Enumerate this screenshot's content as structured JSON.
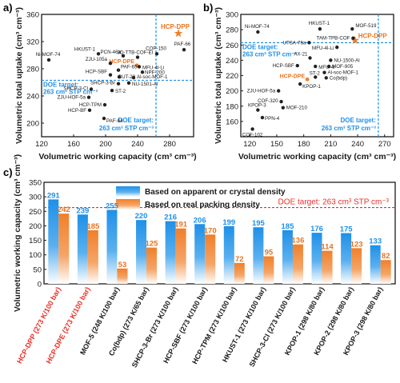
{
  "colors": {
    "orange": "#f07f2a",
    "orange_text": "#e8731f",
    "blue": "#1e90e8",
    "blue_light": "#8cc8f5",
    "dark": "#1a1a1a",
    "red_dash": "#e8312a",
    "label_red": "#e8312a"
  },
  "chart_data": [
    {
      "panel": "a)",
      "type": "scatter",
      "xlabel": "Volumetric working capacity (cm³ cm⁻³)",
      "ylabel": "Volumetric total uptake (cm³ cm⁻³)",
      "xlim": [
        120,
        310
      ],
      "ylim": [
        180,
        360
      ],
      "xticks": [
        120,
        160,
        200,
        240,
        280
      ],
      "yticks": [
        200,
        240,
        280,
        320,
        360
      ],
      "doe": {
        "x": 263,
        "y": 263
      },
      "doe_label": "DOE target:",
      "doe_unit": "263 cm³ STP cm⁻³",
      "doe_label2": "DOE target:",
      "doe_unit2": "263 cm³ STP cm⁻³",
      "points": [
        {
          "name": "HCP-DPP",
          "x": 291,
          "y": 332,
          "kind": "star"
        },
        {
          "name": "HCP-DPE",
          "x": 239,
          "y": 285,
          "kind": "highlight"
        },
        {
          "name": "PAF-66",
          "x": 298,
          "y": 308,
          "kind": "normal"
        },
        {
          "name": "COP-150",
          "x": 264,
          "y": 302,
          "kind": "normal"
        },
        {
          "name": "Ni-MOF-74",
          "x": 129,
          "y": 293,
          "kind": "normal"
        },
        {
          "name": "HKUST-1",
          "x": 191,
          "y": 302,
          "kind": "normal"
        },
        {
          "name": "PCN-46a",
          "x": 222,
          "y": 299,
          "kind": "normal"
        },
        {
          "name": "3D-TTB-COF-EI",
          "x": 240,
          "y": 297,
          "kind": "normal"
        },
        {
          "name": "ZJU-105a",
          "x": 206,
          "y": 288,
          "kind": "normal"
        },
        {
          "name": "MFU-4l-Li",
          "x": 242,
          "y": 283,
          "kind": "normal"
        },
        {
          "name": "PAF-65",
          "x": 216,
          "y": 278,
          "kind": "normal"
        },
        {
          "name": "NPF-200",
          "x": 246,
          "y": 275,
          "kind": "normal"
        },
        {
          "name": "HCP-SBF",
          "x": 206,
          "y": 271,
          "kind": "normal"
        },
        {
          "name": "BUT-22",
          "x": 217,
          "y": 268,
          "kind": "normal"
        },
        {
          "name": "Al-soc-MOF-1",
          "x": 235,
          "y": 267,
          "kind": "normal"
        },
        {
          "name": "SHCP-3-Br",
          "x": 216,
          "y": 258,
          "kind": "normal"
        },
        {
          "name": "NU-1501-Al",
          "x": 229,
          "y": 259,
          "kind": "normal"
        },
        {
          "name": "SHCP-3-Cl",
          "x": 182,
          "y": 250,
          "kind": "normal"
        },
        {
          "name": "ST-2",
          "x": 208,
          "y": 248,
          "kind": "normal"
        },
        {
          "name": "ZJU-HOF-5a",
          "x": 179,
          "y": 238,
          "kind": "normal"
        },
        {
          "name": "HCP-TPM",
          "x": 199,
          "y": 227,
          "kind": "normal"
        },
        {
          "name": "HCP-BF",
          "x": 180,
          "y": 219,
          "kind": "normal"
        },
        {
          "name": "PAF-64",
          "x": 198,
          "y": 207,
          "kind": "normal"
        }
      ]
    },
    {
      "panel": "b)",
      "type": "scatter",
      "xlabel": "Volumetric working capacity (cm³ cm⁻³)",
      "ylabel": "Volumetric total uptake (cm³ cm⁻³)",
      "xlim": [
        110,
        280
      ],
      "ylim": [
        140,
        300
      ],
      "xticks": [
        120,
        150,
        180,
        210,
        240,
        270
      ],
      "yticks": [
        160,
        180,
        200,
        220,
        240,
        260,
        280,
        300
      ],
      "doe": {
        "x": 263,
        "y": 263
      },
      "doe_label": "DOE target:",
      "doe_unit": "263 cm³ STP cm⁻³",
      "doe_label2": "DOE target:",
      "doe_unit2": "263 cm³ STP cm⁻³",
      "points": [
        {
          "name": "HCP-DPP",
          "x": 237,
          "y": 266,
          "kind": "star"
        },
        {
          "name": "HCP-DPE",
          "x": 184,
          "y": 215,
          "kind": "highlight"
        },
        {
          "name": "Ni-MOF-74",
          "x": 129,
          "y": 277,
          "kind": "normal"
        },
        {
          "name": "HKUST-1",
          "x": 198,
          "y": 281,
          "kind": "normal"
        },
        {
          "name": "MOF-519",
          "x": 234,
          "y": 281,
          "kind": "normal"
        },
        {
          "name": "UTSA-76a",
          "x": 186,
          "y": 263,
          "kind": "normal"
        },
        {
          "name": "TAM-TPB-COF",
          "x": 235,
          "y": 269,
          "kind": "normal"
        },
        {
          "name": "MFU-4l-Li",
          "x": 217,
          "y": 257,
          "kind": "normal"
        },
        {
          "name": "AX-21",
          "x": 187,
          "y": 243,
          "kind": "normal"
        },
        {
          "name": "NU-1500-Al",
          "x": 210,
          "y": 240,
          "kind": "normal"
        },
        {
          "name": "HCP-SBF",
          "x": 173,
          "y": 233,
          "kind": "normal"
        },
        {
          "name": "MFU-4l",
          "x": 193,
          "y": 232,
          "kind": "normal"
        },
        {
          "name": "MOF-905",
          "x": 208,
          "y": 232,
          "kind": "normal"
        },
        {
          "name": "Al-soc-MOF-1",
          "x": 203,
          "y": 224,
          "kind": "normal"
        },
        {
          "name": "ST-2",
          "x": 193,
          "y": 218,
          "kind": "normal"
        },
        {
          "name": "Co(bdp)",
          "x": 205,
          "y": 217,
          "kind": "normal"
        },
        {
          "name": "KPOP-1",
          "x": 176,
          "y": 209,
          "kind": "normal"
        },
        {
          "name": "ZJU-HOF-5a",
          "x": 152,
          "y": 200,
          "kind": "normal"
        },
        {
          "name": "COF-320",
          "x": 155,
          "y": 186,
          "kind": "normal"
        },
        {
          "name": "MOF-210",
          "x": 157,
          "y": 178,
          "kind": "normal"
        },
        {
          "name": "KPOP-3",
          "x": 129,
          "y": 175,
          "kind": "normal"
        },
        {
          "name": "PPN-4",
          "x": 134,
          "y": 165,
          "kind": "normal"
        },
        {
          "name": "COF-102",
          "x": 123,
          "y": 150,
          "kind": "normal"
        }
      ]
    },
    {
      "panel": "c)",
      "type": "bar",
      "ylabel": "Volumetric working capacity (cm³ cm⁻³)",
      "ylim": [
        0,
        350
      ],
      "yticks": [
        0,
        50,
        100,
        150,
        200,
        250,
        300,
        350
      ],
      "doe_line": 263,
      "doe_text": "DOE target: 263 cm³ STP cm⁻³",
      "categories": [
        "HCP-DPP (273 K/100 bar)",
        "HCP-DPE (273 K/100 bar)",
        "MOF-5 (248 K/100 bar)",
        "Co(bdp) (273 K/65 bar)",
        "SHCP-3-Br (273 K/100 bar)",
        "HCP-SBF (273 K/100 bar)",
        "HCP-TPM (273 K/100 bar)",
        "HKUST-1 (273 K/100 bar)",
        "SHCP-3-Cl (273 K/100 bar)",
        "KPOP-1 (298 K/80 bar)",
        "KPOP-2 (298 K/80 bar)",
        "KPOP-3 (298 K/80 bar)"
      ],
      "highlight_categories": [
        0,
        1
      ],
      "series": [
        {
          "name": "Based on apparent or crystal density",
          "values": [
            291,
            239,
            255,
            220,
            216,
            206,
            199,
            195,
            185,
            176,
            175,
            133
          ]
        },
        {
          "name": "Based on real packing density",
          "values": [
            242,
            185,
            53,
            125,
            191,
            170,
            72,
            95,
            136,
            114,
            123,
            82
          ]
        }
      ]
    }
  ]
}
